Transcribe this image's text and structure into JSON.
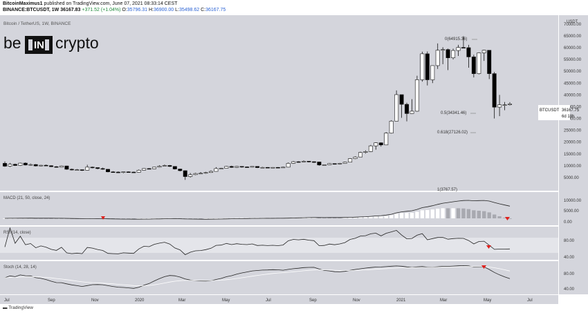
{
  "header": {
    "author": "BitcoinMaximus1",
    "published": "published on TradingView.com, June 07, 2021 08:33:14 CEST",
    "symbol": "BINANCE:BTCUSDT, 1W",
    "last": "36167.83",
    "change": "+371.52 (+1.04%)",
    "o_label": "O:",
    "o": "35796.31",
    "h_label": "H:",
    "h": "36900.00",
    "l_label": "L:",
    "l": "35498.62",
    "c_label": "C:",
    "c": "36167.75"
  },
  "chart_title": "Bitcoin / TetherUS, 1W, BINANCE",
  "logo": {
    "left": "be",
    "mid": "IN",
    "right": "crypto"
  },
  "price_axis": {
    "currency": "USDT",
    "ticks": [
      "70000.00",
      "65000.00",
      "60000.00",
      "55000.00",
      "50000.00",
      "45000.00",
      "40000.00",
      "35000.00",
      "30000.00",
      "25000.00",
      "20000.00",
      "15000.00",
      "10000.00",
      "5000.00"
    ],
    "last_label": "BTCUSDT",
    "last_value": "36167.75",
    "countdown": "6d 18h"
  },
  "annotations": {
    "fib0": "0(64915.36)",
    "fib05": "0.5(34341.46)",
    "fib0618": "0.618(27126.02)",
    "macd_peak": "1(3767.57)"
  },
  "macd": {
    "title": "MACD (21, 50, close, 24)",
    "ticks": [
      "10000.00",
      "5000.00",
      "0.00"
    ]
  },
  "rsi": {
    "title": "RSI (14, close)",
    "ticks": [
      "80.00",
      "40.00"
    ]
  },
  "stoch": {
    "title": "Stoch (14, 28, 14)",
    "ticks": [
      "80.00",
      "40.00"
    ]
  },
  "time_axis": [
    "Jul",
    "Sep",
    "Nov",
    "2020",
    "Mar",
    "May",
    "Jul",
    "Sep",
    "Nov",
    "2021",
    "Mar",
    "May",
    "Jul"
  ],
  "footer": {
    "brand": "TradingView"
  },
  "colors": {
    "pane": "#d4d5dc",
    "up": "#ffffff",
    "down": "#000000",
    "marker": "#e0201c",
    "stoch_signal": "#ffffff"
  },
  "chart_data": {
    "type": "candlestick",
    "title": "Bitcoin / TetherUS, 1W, BINANCE",
    "ylim": [
      0,
      72000
    ],
    "series": [
      {
        "name": "BTCUSDT",
        "points": [
          [
            11000,
            9800,
            11800,
            9500
          ],
          [
            9800,
            10600,
            11200,
            9400
          ],
          [
            10600,
            10100,
            10900,
            9900
          ],
          [
            10100,
            11100,
            11300,
            9900
          ],
          [
            11100,
            10300,
            11400,
            10100
          ],
          [
            10300,
            10500,
            10900,
            10000
          ],
          [
            10500,
            9900,
            10700,
            9700
          ],
          [
            9900,
            10200,
            10400,
            9700
          ],
          [
            10200,
            10000,
            10500,
            9800
          ],
          [
            10000,
            9600,
            10200,
            9400
          ],
          [
            9600,
            9400,
            9800,
            9200
          ],
          [
            9400,
            9900,
            10100,
            9300
          ],
          [
            9900,
            8500,
            10000,
            8300
          ],
          [
            8500,
            8200,
            8800,
            8000
          ],
          [
            8200,
            8300,
            8600,
            8000
          ],
          [
            8300,
            8100,
            8400,
            7800
          ],
          [
            8100,
            9400,
            10400,
            8000
          ],
          [
            9400,
            9200,
            9600,
            8900
          ],
          [
            9200,
            8800,
            9300,
            8500
          ],
          [
            8800,
            8500,
            9200,
            8300
          ],
          [
            8500,
            7400,
            8600,
            7200
          ],
          [
            7400,
            7300,
            7700,
            7100
          ],
          [
            7300,
            7200,
            7600,
            6900
          ],
          [
            7200,
            7400,
            7500,
            6800
          ],
          [
            7400,
            7300,
            7600,
            7100
          ],
          [
            7300,
            7200,
            7500,
            7000
          ],
          [
            7200,
            8100,
            8400,
            7100
          ],
          [
            8100,
            8800,
            9000,
            8000
          ],
          [
            8800,
            8700,
            9000,
            8500
          ],
          [
            8700,
            9400,
            9600,
            8600
          ],
          [
            9400,
            9800,
            10200,
            9300
          ],
          [
            9800,
            10100,
            10500,
            9700
          ],
          [
            10100,
            9700,
            10300,
            9500
          ],
          [
            9700,
            8600,
            9800,
            8400
          ],
          [
            8600,
            7900,
            8700,
            7600
          ],
          [
            7900,
            5400,
            8000,
            4000
          ],
          [
            5400,
            6200,
            6900,
            5000
          ],
          [
            6200,
            6700,
            7000,
            6000
          ],
          [
            6700,
            6800,
            7300,
            6400
          ],
          [
            6800,
            7100,
            7400,
            6600
          ],
          [
            7100,
            7600,
            8000,
            7000
          ],
          [
            7600,
            8800,
            9400,
            7500
          ],
          [
            8800,
            8900,
            9100,
            8600
          ],
          [
            8900,
            9700,
            9900,
            8800
          ],
          [
            9700,
            9300,
            10000,
            9100
          ],
          [
            9300,
            9700,
            9900,
            9100
          ],
          [
            9700,
            9500,
            9800,
            9200
          ],
          [
            9500,
            9400,
            9700,
            9200
          ],
          [
            9400,
            9700,
            9800,
            9300
          ],
          [
            9700,
            9200,
            9800,
            9000
          ],
          [
            9200,
            9300,
            9500,
            9000
          ],
          [
            9300,
            9200,
            9400,
            9000
          ],
          [
            9200,
            9300,
            9400,
            9100
          ],
          [
            9300,
            9200,
            9400,
            9000
          ],
          [
            9200,
            9400,
            9600,
            9100
          ],
          [
            9400,
            11000,
            11400,
            9300
          ],
          [
            11000,
            11700,
            12000,
            10800
          ],
          [
            11700,
            11600,
            11900,
            11300
          ],
          [
            11600,
            11900,
            12300,
            11500
          ],
          [
            11900,
            11700,
            12000,
            11400
          ],
          [
            11700,
            11600,
            11900,
            11200
          ],
          [
            11600,
            10300,
            11700,
            10000
          ],
          [
            10300,
            10400,
            10500,
            10100
          ],
          [
            10400,
            10900,
            11100,
            10300
          ],
          [
            10900,
            10700,
            11000,
            10500
          ],
          [
            10700,
            11000,
            11200,
            10500
          ],
          [
            11000,
            11500,
            11700,
            10900
          ],
          [
            11500,
            13000,
            13200,
            11400
          ],
          [
            13000,
            13700,
            14000,
            12800
          ],
          [
            13700,
            15600,
            15900,
            13600
          ],
          [
            15600,
            16000,
            16500,
            15200
          ],
          [
            16000,
            18400,
            18800,
            15800
          ],
          [
            18400,
            19700,
            19900,
            16800
          ],
          [
            19700,
            18800,
            19900,
            18100
          ],
          [
            18800,
            23800,
            24200,
            18700
          ],
          [
            23800,
            28900,
            29300,
            23600
          ],
          [
            28900,
            40100,
            41900,
            28800
          ],
          [
            40100,
            36000,
            40100,
            30300
          ],
          [
            36000,
            32100,
            36700,
            28800
          ],
          [
            32100,
            33100,
            38200,
            32000
          ],
          [
            33100,
            46400,
            48100,
            32900
          ],
          [
            46400,
            57400,
            58300,
            45600
          ],
          [
            57400,
            46400,
            58400,
            44000
          ],
          [
            46400,
            52400,
            52500,
            45000
          ],
          [
            52400,
            58900,
            61800,
            51000
          ],
          [
            58900,
            59200,
            60200,
            53000
          ],
          [
            59200,
            55700,
            59600,
            50500
          ],
          [
            55700,
            58800,
            59600,
            55000
          ],
          [
            58800,
            60100,
            61200,
            56500
          ],
          [
            60100,
            60000,
            64900,
            59800
          ],
          [
            60000,
            56100,
            61200,
            51500
          ],
          [
            56100,
            49000,
            57000,
            47400
          ],
          [
            49000,
            57800,
            58000,
            48700
          ],
          [
            57800,
            58900,
            59100,
            54400
          ],
          [
            58900,
            49000,
            58900,
            46700
          ],
          [
            49000,
            34800,
            49700,
            30000
          ],
          [
            34800,
            35800,
            40000,
            31000
          ],
          [
            35800,
            35800,
            37000,
            33500
          ],
          [
            35800,
            36167,
            36900,
            35500
          ]
        ]
      }
    ]
  }
}
